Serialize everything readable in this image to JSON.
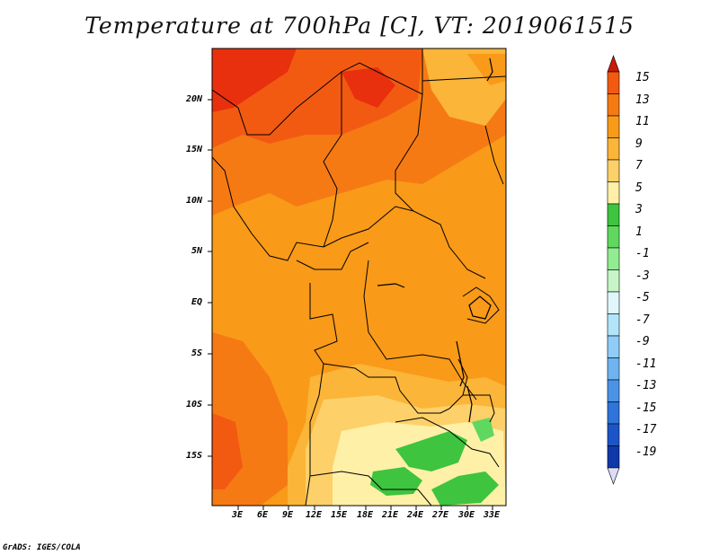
{
  "title": "Temperature at 700hPa [C], VT: 2019061515",
  "credit": "GrADS: IGES/COLA",
  "lat_labels": [
    "20N",
    "15N",
    "10N",
    "5N",
    "EQ",
    "5S",
    "10S",
    "15S"
  ],
  "lon_labels": [
    "3E",
    "6E",
    "9E",
    "12E",
    "15E",
    "18E",
    "21E",
    "24E",
    "27E",
    "30E",
    "33E"
  ],
  "colorbar": {
    "labels": [
      "15",
      "13",
      "11",
      "9",
      "7",
      "5",
      "3",
      "1",
      "-1",
      "-3",
      "-5",
      "-7",
      "-9",
      "-11",
      "-13",
      "-15",
      "-17",
      "-19"
    ],
    "colors": [
      "#e8300e",
      "#f25a12",
      "#f57a14",
      "#f99a18",
      "#fbb538",
      "#fdd06a",
      "#fff0a8",
      "#3ec43e",
      "#60d860",
      "#92ec92",
      "#c7f5c7",
      "#dff7fa",
      "#b2e5fa",
      "#8fcdf8",
      "#6fb3f0",
      "#4b93e6",
      "#2e74da",
      "#1c55c8",
      "#1038a8",
      "#081a78"
    ],
    "top_arrow_color": "#cc1a08",
    "bottom_arrow_color": "#dcdcfa"
  }
}
